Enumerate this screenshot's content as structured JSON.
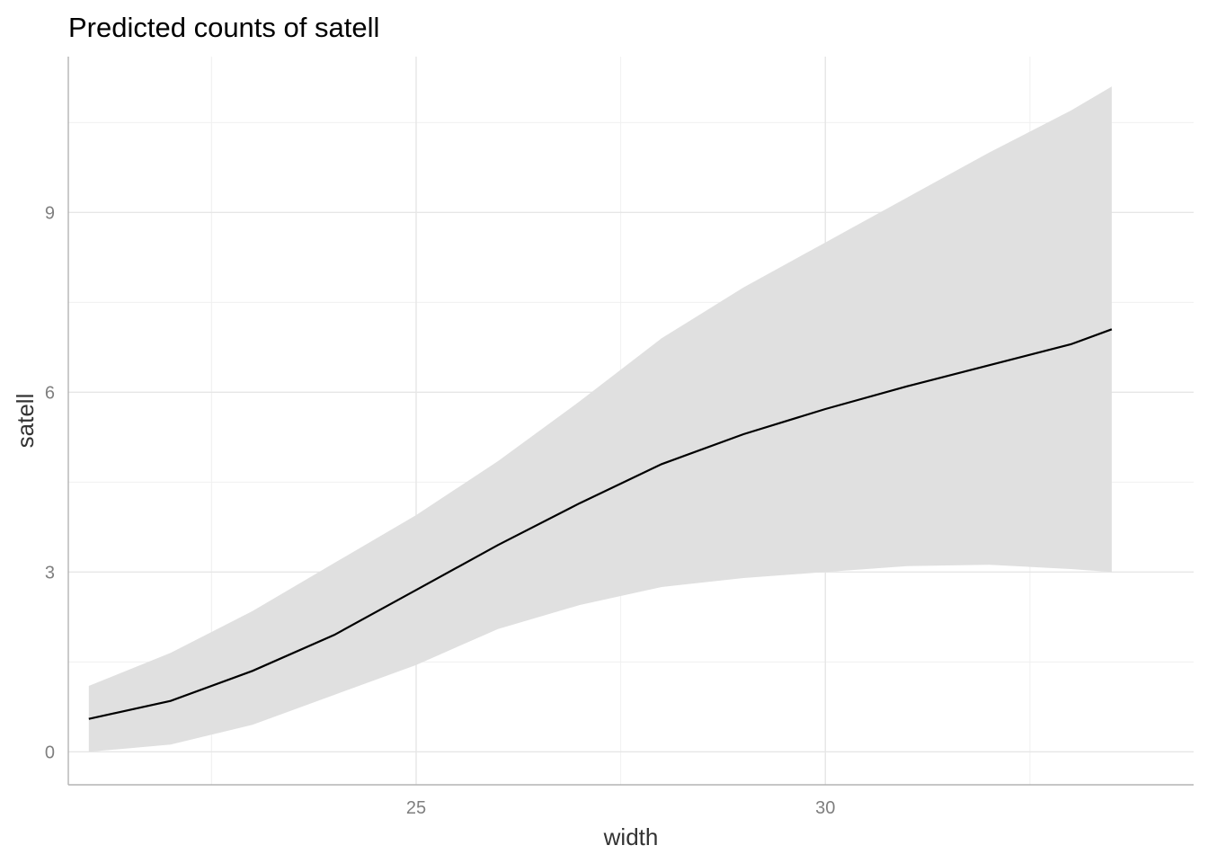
{
  "chart_data": {
    "type": "line",
    "title": "Predicted counts of satell",
    "xlabel": "width",
    "ylabel": "satell",
    "xlim": [
      20.75,
      34.5
    ],
    "ylim": [
      -0.55,
      11.6
    ],
    "x_ticks": [
      25,
      30
    ],
    "x_tick_labels": [
      "25",
      "30"
    ],
    "x_minor_ticks": [
      22.5,
      27.5,
      32.5
    ],
    "y_ticks": [
      0,
      3,
      6,
      9
    ],
    "y_tick_labels": [
      "0",
      "3",
      "6",
      "9"
    ],
    "y_minor_ticks": [
      1.5,
      4.5,
      7.5,
      10.5
    ],
    "grid": true,
    "legend": "none",
    "colors": {
      "line": "#000000",
      "band": "#e0e0e0",
      "grid": "#e6e6e6"
    },
    "series": [
      {
        "x": [
          21,
          22,
          23,
          24,
          25,
          26,
          27,
          28,
          29,
          30,
          31,
          32,
          33,
          33.5
        ],
        "y": [
          0.55,
          0.85,
          1.35,
          1.95,
          2.7,
          3.45,
          4.15,
          4.8,
          5.3,
          5.72,
          6.1,
          6.45,
          6.8,
          7.05
        ],
        "lower": [
          0.0,
          0.12,
          0.45,
          0.95,
          1.45,
          2.05,
          2.45,
          2.75,
          2.9,
          3.0,
          3.1,
          3.12,
          3.05,
          3.0
        ],
        "upper": [
          1.1,
          1.65,
          2.35,
          3.15,
          3.95,
          4.85,
          5.85,
          6.9,
          7.75,
          8.5,
          9.25,
          10.0,
          10.7,
          11.1
        ]
      }
    ]
  }
}
